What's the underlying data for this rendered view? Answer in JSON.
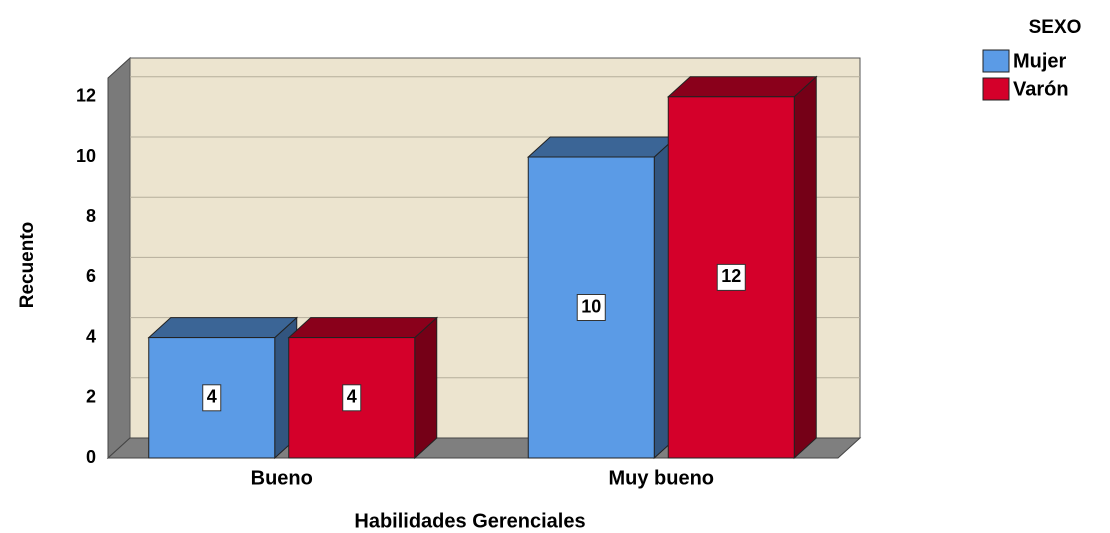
{
  "chart_data": {
    "type": "bar3d",
    "x_label": "Habilidades Gerenciales",
    "y_label": "Recuento",
    "legend_title": "SEXO",
    "categories": [
      "Bueno",
      "Muy bueno"
    ],
    "series": [
      {
        "name": "Mujer",
        "color": "#5b9be6",
        "values": [
          4,
          10
        ]
      },
      {
        "name": "Varón",
        "color": "#d4002a",
        "values": [
          4,
          12
        ]
      }
    ],
    "ylim": [
      0,
      12.6
    ],
    "yticks": [
      0,
      2,
      4,
      6,
      8,
      10,
      12
    ],
    "grid": true,
    "legend": "top-right"
  }
}
